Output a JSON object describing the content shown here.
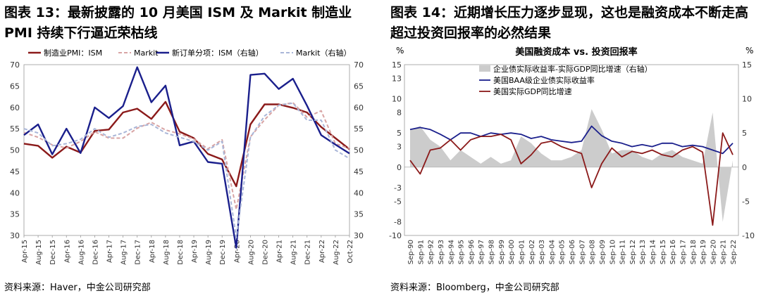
{
  "charts": [
    {
      "figure_title": "图表 13：最新披露的 10 月美国 ISM 及 Markit 制造业 PMI 持续下行逼近荣枯线",
      "source": "资料来源：Haver，中金公司研究部",
      "legend": [
        "制造业PMI：ISM",
        "Markit",
        "新订单分项：ISM（右轴）",
        "Markit（右轴）"
      ],
      "colors": {
        "ism": "#8b1a1a",
        "markit": "#d8a4a4",
        "ism_new_orders": "#1a1f8c",
        "markit_new_orders": "#a9b6d8"
      }
    },
    {
      "figure_title": "图表 14：近期增长压力逐步显现，这也是融资成本不断走高超过投资回报率的必然结果",
      "chart_title": "美国融资成本 vs. 投资回报率",
      "source": "资料来源：Bloomberg，中金公司研究部",
      "legend": [
        "企业债实际收益率-实际GDP同比增速（右轴）",
        "美国BAA级企业债实际收益率",
        "美国实际GDP同比增速"
      ],
      "left_unit": "%",
      "right_unit": "%",
      "colors": {
        "spread": "#cccccc",
        "baa": "#1a1f8c",
        "gdp": "#8b1a1a"
      }
    }
  ],
  "chart_data": [
    {
      "type": "line",
      "x": [
        "Apr-15",
        "Aug-15",
        "Dec-15",
        "Apr-16",
        "Aug-16",
        "Dec-16",
        "Apr-17",
        "Aug-17",
        "Dec-17",
        "Apr-18",
        "Aug-18",
        "Dec-18",
        "Apr-19",
        "Aug-19",
        "Dec-19",
        "Apr-20",
        "Aug-20",
        "Dec-20",
        "Apr-21",
        "Aug-21",
        "Dec-21",
        "Apr-22",
        "Aug-22",
        "Oct-22"
      ],
      "series": [
        {
          "name": "制造业PMI：ISM",
          "axis": "left",
          "values": [
            51.5,
            51.0,
            48.2,
            50.8,
            49.4,
            54.5,
            54.8,
            58.8,
            59.7,
            57.3,
            61.3,
            54.3,
            52.8,
            49.1,
            47.8,
            41.5,
            56.0,
            60.7,
            60.7,
            59.9,
            58.8,
            55.4,
            52.8,
            50.2
          ]
        },
        {
          "name": "Markit",
          "axis": "left",
          "values": [
            54.1,
            53.0,
            51.2,
            50.5,
            52.0,
            54.3,
            52.8,
            52.8,
            55.1,
            56.5,
            54.7,
            53.8,
            52.6,
            50.3,
            52.4,
            36.1,
            53.1,
            57.1,
            60.5,
            61.1,
            57.7,
            59.2,
            51.5,
            50.4
          ]
        },
        {
          "name": "新订单分项：ISM（右轴）",
          "axis": "right",
          "values": [
            53.5,
            56.0,
            49.0,
            55.0,
            49.3,
            60.0,
            57.5,
            60.3,
            69.4,
            61.2,
            65.1,
            51.1,
            52.0,
            47.2,
            46.8,
            27.1,
            67.6,
            67.9,
            64.3,
            66.7,
            60.4,
            53.5,
            51.3,
            49.2
          ]
        },
        {
          "name": "Markit（右轴）",
          "axis": "right",
          "values": [
            55.0,
            54.0,
            51.0,
            51.5,
            52.5,
            55.0,
            53.0,
            54.0,
            55.5,
            56.0,
            54.0,
            53.0,
            52.0,
            50.0,
            52.0,
            29.5,
            53.0,
            58.0,
            60.5,
            61.0,
            57.0,
            57.0,
            50.0,
            48.0
          ]
        }
      ],
      "xlabel": "",
      "ylabel": "",
      "ylim": [
        30,
        70
      ],
      "y2lim": [
        30,
        70
      ],
      "yticks": [
        30,
        35,
        40,
        45,
        50,
        55,
        60,
        65,
        70
      ],
      "legend_position": "top"
    },
    {
      "type": "line",
      "title": "美国融资成本 vs. 投资回报率",
      "x": [
        "Sep-90",
        "Sep-91",
        "Sep-92",
        "Sep-93",
        "Sep-94",
        "Sep-95",
        "Sep-96",
        "Sep-97",
        "Sep-98",
        "Sep-99",
        "Sep-00",
        "Sep-01",
        "Sep-02",
        "Sep-03",
        "Sep-04",
        "Sep-05",
        "Sep-06",
        "Sep-07",
        "Sep-08",
        "Sep-09",
        "Sep-10",
        "Sep-11",
        "Sep-12",
        "Sep-13",
        "Sep-14",
        "Sep-15",
        "Sep-16",
        "Sep-17",
        "Sep-18",
        "Sep-19",
        "Sep-20",
        "Sep-21",
        "Sep-22"
      ],
      "series": [
        {
          "name": "企业债实际收益率-实际GDP同比增速（右轴）",
          "axis": "right",
          "values": [
            5.5,
            6.0,
            4.0,
            3.0,
            1.0,
            2.5,
            1.5,
            0.5,
            1.5,
            0.5,
            1.0,
            4.5,
            3.5,
            2.0,
            1.0,
            1.0,
            1.5,
            2.5,
            8.5,
            5.5,
            2.0,
            2.5,
            2.5,
            1.5,
            1.0,
            2.0,
            2.5,
            1.5,
            1.0,
            0.5,
            8.0,
            -8.0,
            1.0
          ]
        },
        {
          "name": "美国BAA级企业债实际收益率",
          "axis": "left",
          "values": [
            5.5,
            5.8,
            5.5,
            4.8,
            4.0,
            5.0,
            5.0,
            4.5,
            5.0,
            4.8,
            5.0,
            4.8,
            4.2,
            4.5,
            4.0,
            3.8,
            3.6,
            3.8,
            6.0,
            4.6,
            3.8,
            3.5,
            3.0,
            3.3,
            3.0,
            3.5,
            3.5,
            3.0,
            3.2,
            3.0,
            2.5,
            2.0,
            3.5
          ]
        },
        {
          "name": "美国实际GDP同比增速",
          "axis": "left",
          "values": [
            1.0,
            -1.0,
            2.5,
            2.8,
            4.0,
            2.5,
            4.0,
            4.5,
            4.5,
            4.8,
            4.0,
            0.5,
            1.8,
            3.5,
            3.8,
            3.0,
            2.5,
            2.0,
            -3.0,
            0.5,
            2.8,
            1.5,
            2.3,
            2.0,
            2.5,
            1.8,
            1.5,
            2.5,
            3.0,
            2.2,
            -8.5,
            5.0,
            1.8
          ]
        }
      ],
      "xlabel": "",
      "ylabel": "%",
      "ylim": [
        -10,
        15
      ],
      "y2lim": [
        -10,
        15
      ],
      "yticks": [
        -10,
        -8,
        -5,
        -3,
        0,
        3,
        5,
        8,
        10,
        13,
        15
      ],
      "y2ticks": [
        -10,
        -5,
        0,
        5,
        10,
        15
      ],
      "legend_position": "top-left"
    }
  ]
}
